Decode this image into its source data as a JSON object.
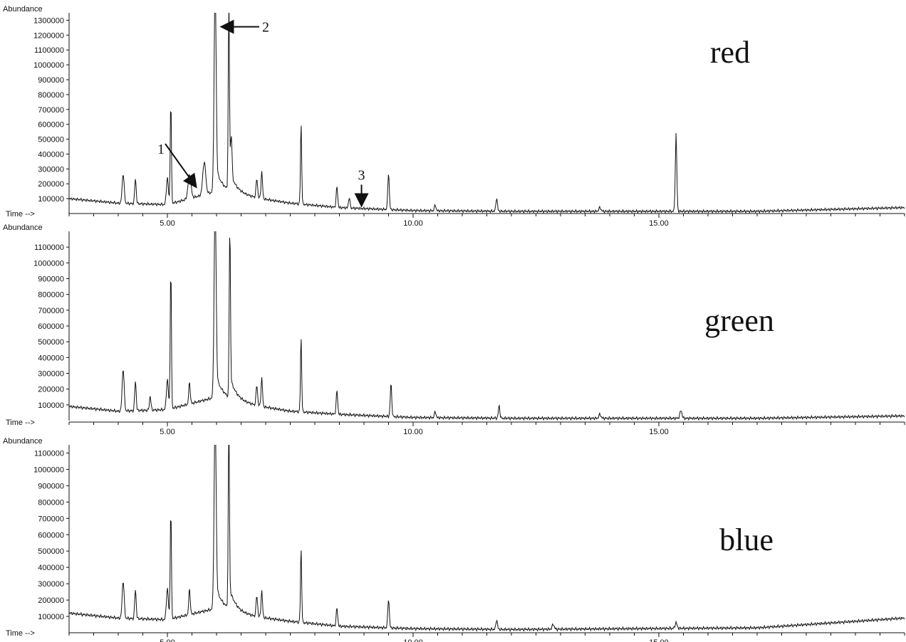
{
  "chart_data": [
    {
      "type": "line",
      "name_label": "red",
      "ylabel": "Abundance",
      "xlabel": "Time -->",
      "xlim": [
        3.0,
        20.0
      ],
      "ylim": [
        0,
        1350000
      ],
      "yticks": [
        100000,
        200000,
        300000,
        400000,
        500000,
        600000,
        700000,
        800000,
        900000,
        1000000,
        1100000,
        1200000,
        1300000
      ],
      "xticks": [
        5.0,
        10.0,
        15.0
      ],
      "xtick_labels": [
        "5.00",
        "10.00",
        "15.00"
      ],
      "annotations": [
        {
          "text": "1",
          "x": 5.6,
          "y": 180000
        },
        {
          "text": "2",
          "x": 6.05,
          "y": 1280000
        },
        {
          "text": "3",
          "x": 8.95,
          "y": 60000
        }
      ],
      "peaks": [
        {
          "x": 4.1,
          "y": 200000,
          "w": 0.02
        },
        {
          "x": 4.35,
          "y": 170000,
          "w": 0.015
        },
        {
          "x": 5.0,
          "y": 180000,
          "w": 0.02
        },
        {
          "x": 5.07,
          "y": 700000,
          "w": 0.012
        },
        {
          "x": 5.45,
          "y": 160000,
          "w": 0.03
        },
        {
          "x": 5.75,
          "y": 220000,
          "w": 0.03
        },
        {
          "x": 5.97,
          "y": 1350000,
          "w": 0.02
        },
        {
          "x": 6.25,
          "y": 1200000,
          "w": 0.012
        },
        {
          "x": 6.3,
          "y": 280000,
          "w": 0.015
        },
        {
          "x": 6.82,
          "y": 130000,
          "w": 0.015
        },
        {
          "x": 6.92,
          "y": 180000,
          "w": 0.015
        },
        {
          "x": 7.72,
          "y": 550000,
          "w": 0.012
        },
        {
          "x": 8.45,
          "y": 140000,
          "w": 0.015
        },
        {
          "x": 8.7,
          "y": 70000,
          "w": 0.015
        },
        {
          "x": 9.5,
          "y": 250000,
          "w": 0.015
        },
        {
          "x": 10.45,
          "y": 40000,
          "w": 0.015
        },
        {
          "x": 11.7,
          "y": 90000,
          "w": 0.015
        },
        {
          "x": 13.8,
          "y": 25000,
          "w": 0.02
        },
        {
          "x": 15.35,
          "y": 520000,
          "w": 0.015
        }
      ],
      "baseline": [
        [
          3.0,
          100000
        ],
        [
          4.0,
          70000
        ],
        [
          5.0,
          60000
        ],
        [
          6.0,
          150000
        ],
        [
          6.5,
          120000
        ],
        [
          7.5,
          70000
        ],
        [
          8.5,
          40000
        ],
        [
          10.0,
          20000
        ],
        [
          12.0,
          15000
        ],
        [
          17.0,
          15000
        ],
        [
          20.0,
          40000
        ]
      ]
    },
    {
      "type": "line",
      "name_label": "green",
      "ylabel": "Abundance",
      "xlabel": "Time -->",
      "xlim": [
        3.0,
        20.0
      ],
      "ylim": [
        0,
        1200000
      ],
      "yticks": [
        100000,
        200000,
        300000,
        400000,
        500000,
        600000,
        700000,
        800000,
        900000,
        1000000,
        1100000
      ],
      "xticks": [
        5.0,
        10.0,
        15.0
      ],
      "xtick_labels": [
        "5.00",
        "10.00",
        "15.00"
      ],
      "annotations": [],
      "peaks": [
        {
          "x": 4.1,
          "y": 270000,
          "w": 0.02
        },
        {
          "x": 4.35,
          "y": 190000,
          "w": 0.015
        },
        {
          "x": 4.65,
          "y": 90000,
          "w": 0.015
        },
        {
          "x": 5.0,
          "y": 190000,
          "w": 0.02
        },
        {
          "x": 5.07,
          "y": 910000,
          "w": 0.012
        },
        {
          "x": 5.45,
          "y": 140000,
          "w": 0.015
        },
        {
          "x": 5.97,
          "y": 1200000,
          "w": 0.02
        },
        {
          "x": 6.27,
          "y": 1060000,
          "w": 0.012
        },
        {
          "x": 6.82,
          "y": 130000,
          "w": 0.015
        },
        {
          "x": 6.92,
          "y": 180000,
          "w": 0.015
        },
        {
          "x": 7.72,
          "y": 480000,
          "w": 0.012
        },
        {
          "x": 8.45,
          "y": 150000,
          "w": 0.015
        },
        {
          "x": 9.55,
          "y": 210000,
          "w": 0.015
        },
        {
          "x": 10.45,
          "y": 40000,
          "w": 0.015
        },
        {
          "x": 11.75,
          "y": 80000,
          "w": 0.015
        },
        {
          "x": 13.8,
          "y": 25000,
          "w": 0.02
        },
        {
          "x": 15.45,
          "y": 50000,
          "w": 0.02
        }
      ],
      "baseline": [
        [
          3.0,
          90000
        ],
        [
          4.0,
          60000
        ],
        [
          5.0,
          70000
        ],
        [
          6.0,
          150000
        ],
        [
          6.5,
          110000
        ],
        [
          7.5,
          60000
        ],
        [
          8.5,
          40000
        ],
        [
          10.0,
          20000
        ],
        [
          12.0,
          15000
        ],
        [
          17.0,
          15000
        ],
        [
          20.0,
          30000
        ]
      ]
    },
    {
      "type": "line",
      "name_label": "blue",
      "ylabel": "Abundance",
      "xlabel": "Time -->",
      "xlim": [
        3.0,
        20.0
      ],
      "ylim": [
        0,
        1150000
      ],
      "yticks": [
        100000,
        200000,
        300000,
        400000,
        500000,
        600000,
        700000,
        800000,
        900000,
        1000000,
        1100000
      ],
      "xticks": [
        5.0,
        10.0,
        15.0
      ],
      "xtick_labels": [
        "5.00",
        "10.00",
        "15.00"
      ],
      "annotations": [],
      "peaks": [
        {
          "x": 4.1,
          "y": 230000,
          "w": 0.02
        },
        {
          "x": 4.35,
          "y": 180000,
          "w": 0.015
        },
        {
          "x": 5.0,
          "y": 190000,
          "w": 0.02
        },
        {
          "x": 5.07,
          "y": 680000,
          "w": 0.012
        },
        {
          "x": 5.45,
          "y": 160000,
          "w": 0.015
        },
        {
          "x": 5.97,
          "y": 1150000,
          "w": 0.02
        },
        {
          "x": 6.25,
          "y": 1080000,
          "w": 0.012
        },
        {
          "x": 6.82,
          "y": 130000,
          "w": 0.015
        },
        {
          "x": 6.92,
          "y": 160000,
          "w": 0.015
        },
        {
          "x": 7.72,
          "y": 460000,
          "w": 0.012
        },
        {
          "x": 8.45,
          "y": 110000,
          "w": 0.015
        },
        {
          "x": 9.5,
          "y": 180000,
          "w": 0.015
        },
        {
          "x": 11.7,
          "y": 60000,
          "w": 0.015
        },
        {
          "x": 12.85,
          "y": 30000,
          "w": 0.02
        },
        {
          "x": 15.35,
          "y": 35000,
          "w": 0.02
        }
      ],
      "baseline": [
        [
          3.0,
          120000
        ],
        [
          4.0,
          90000
        ],
        [
          5.0,
          80000
        ],
        [
          6.0,
          150000
        ],
        [
          6.5,
          110000
        ],
        [
          7.5,
          70000
        ],
        [
          8.5,
          40000
        ],
        [
          10.0,
          25000
        ],
        [
          12.0,
          20000
        ],
        [
          17.0,
          30000
        ],
        [
          20.0,
          90000
        ]
      ]
    }
  ]
}
